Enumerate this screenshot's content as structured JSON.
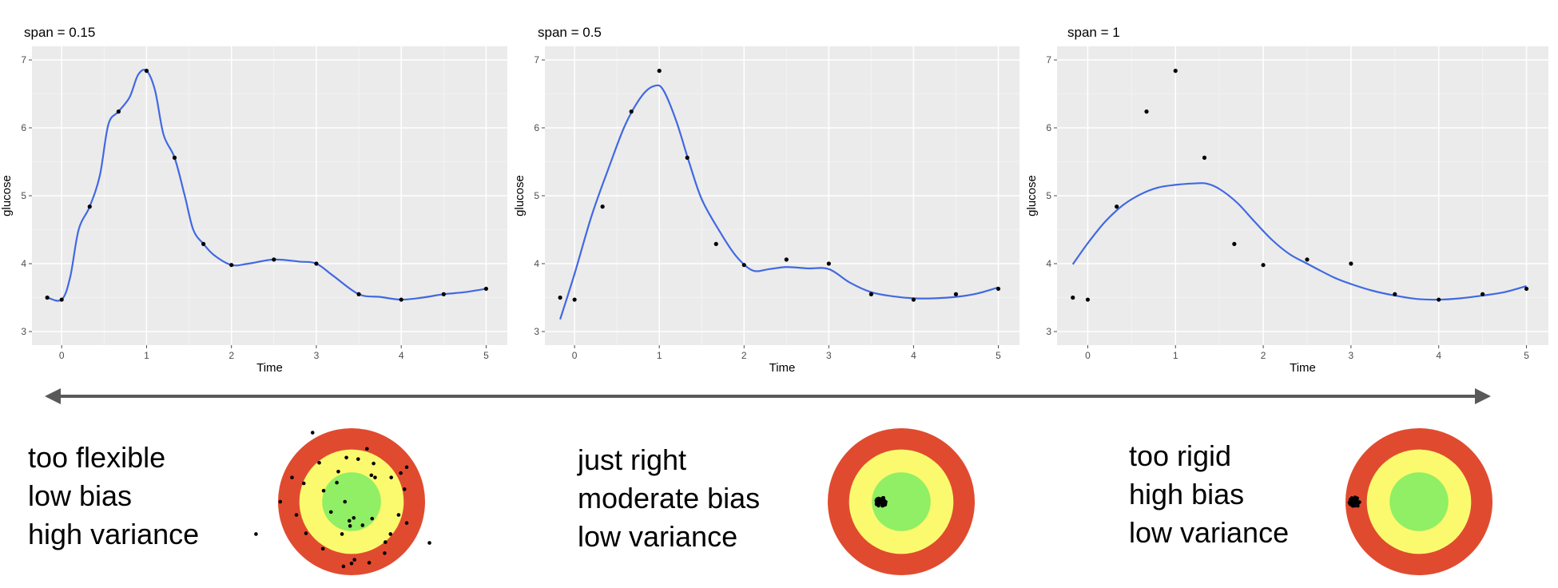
{
  "chart_data": [
    {
      "type": "scatter",
      "title": "span = 0.15",
      "xlabel": "Time",
      "ylabel": "glucose",
      "xlim": [
        -0.35,
        5.25
      ],
      "ylim": [
        2.8,
        7.2
      ],
      "x_ticks": [
        "0",
        "1",
        "2",
        "3",
        "4",
        "5"
      ],
      "y_ticks": [
        "3",
        "4",
        "5",
        "6",
        "7"
      ],
      "grid": true,
      "points": {
        "x": [
          -0.17,
          0,
          0.33,
          0.67,
          1,
          1.33,
          1.67,
          2,
          2.5,
          3,
          3.5,
          4,
          4.5,
          5
        ],
        "y": [
          3.5,
          3.47,
          4.84,
          6.24,
          6.84,
          5.56,
          4.29,
          3.98,
          4.06,
          4.0,
          3.55,
          3.47,
          3.55,
          3.63
        ]
      },
      "smooth": {
        "x": [
          -0.17,
          0,
          0.1,
          0.2,
          0.33,
          0.45,
          0.55,
          0.67,
          0.8,
          0.9,
          1,
          1.1,
          1.2,
          1.33,
          1.45,
          1.55,
          1.67,
          1.8,
          2,
          2.2,
          2.5,
          2.8,
          3,
          3.2,
          3.5,
          3.75,
          4,
          4.25,
          4.5,
          4.75,
          5
        ],
        "y": [
          3.5,
          3.47,
          3.8,
          4.5,
          4.84,
          5.3,
          6.05,
          6.24,
          6.45,
          6.78,
          6.84,
          6.55,
          5.9,
          5.56,
          5.0,
          4.5,
          4.29,
          4.12,
          3.98,
          4.0,
          4.06,
          4.03,
          4.0,
          3.82,
          3.55,
          3.51,
          3.47,
          3.5,
          3.55,
          3.58,
          3.63
        ]
      },
      "color": "#4169e1"
    },
    {
      "type": "scatter",
      "title": "span = 0.5",
      "xlabel": "Time",
      "ylabel": "glucose",
      "xlim": [
        -0.35,
        5.25
      ],
      "ylim": [
        2.8,
        7.2
      ],
      "x_ticks": [
        "0",
        "1",
        "2",
        "3",
        "4",
        "5"
      ],
      "y_ticks": [
        "3",
        "4",
        "5",
        "6",
        "7"
      ],
      "grid": true,
      "points": {
        "x": [
          -0.17,
          0,
          0.33,
          0.67,
          1,
          1.33,
          1.67,
          2,
          2.5,
          3,
          3.5,
          4,
          4.5,
          5
        ],
        "y": [
          3.5,
          3.47,
          4.84,
          6.24,
          6.84,
          5.56,
          4.29,
          3.98,
          4.06,
          4.0,
          3.55,
          3.47,
          3.55,
          3.63
        ]
      },
      "smooth": {
        "x": [
          -0.17,
          0,
          0.2,
          0.4,
          0.6,
          0.8,
          0.95,
          1.05,
          1.2,
          1.35,
          1.5,
          1.7,
          1.9,
          2.1,
          2.3,
          2.5,
          2.75,
          3,
          3.25,
          3.5,
          3.75,
          4,
          4.25,
          4.5,
          4.75,
          5
        ],
        "y": [
          3.18,
          3.85,
          4.7,
          5.4,
          6.05,
          6.48,
          6.62,
          6.55,
          6.1,
          5.5,
          4.95,
          4.5,
          4.12,
          3.9,
          3.92,
          3.95,
          3.93,
          3.92,
          3.72,
          3.58,
          3.52,
          3.49,
          3.49,
          3.51,
          3.56,
          3.65
        ]
      },
      "color": "#4169e1"
    },
    {
      "type": "scatter",
      "title": "span = 1",
      "xlabel": "Time",
      "ylabel": "glucose",
      "xlim": [
        -0.35,
        5.25
      ],
      "ylim": [
        2.8,
        7.2
      ],
      "x_ticks": [
        "0",
        "1",
        "2",
        "3",
        "4",
        "5"
      ],
      "y_ticks": [
        "3",
        "4",
        "5",
        "6",
        "7"
      ],
      "grid": true,
      "points": {
        "x": [
          -0.17,
          0,
          0.33,
          0.67,
          1,
          1.33,
          1.67,
          2,
          2.5,
          3,
          3.5,
          4,
          4.5,
          5
        ],
        "y": [
          3.5,
          3.47,
          4.84,
          6.24,
          6.84,
          5.56,
          4.29,
          3.98,
          4.06,
          4.0,
          3.55,
          3.47,
          3.55,
          3.63
        ]
      },
      "smooth": {
        "x": [
          -0.17,
          0,
          0.2,
          0.4,
          0.6,
          0.8,
          1,
          1.2,
          1.35,
          1.5,
          1.7,
          1.9,
          2.1,
          2.3,
          2.5,
          2.8,
          3,
          3.25,
          3.5,
          3.75,
          4,
          4.25,
          4.5,
          4.75,
          5
        ],
        "y": [
          3.99,
          4.3,
          4.62,
          4.86,
          5.02,
          5.12,
          5.16,
          5.18,
          5.18,
          5.1,
          4.9,
          4.62,
          4.35,
          4.14,
          4.0,
          3.8,
          3.7,
          3.6,
          3.53,
          3.48,
          3.47,
          3.49,
          3.53,
          3.58,
          3.67
        ]
      },
      "color": "#4169e1"
    }
  ],
  "arrow": {
    "color": "#595959"
  },
  "targets": {
    "ring_colors": {
      "outer": "#e04b2f",
      "middle": "#fbfa6e",
      "inner": "#90ef64"
    },
    "items": [
      {
        "lines": [
          "too flexible",
          "low bias",
          "high variance"
        ],
        "hits": [
          [
            -0.53,
            -0.94
          ],
          [
            0.21,
            -0.72
          ],
          [
            -0.44,
            -0.53
          ],
          [
            -0.65,
            -0.25
          ],
          [
            -0.81,
            -0.33
          ],
          [
            -0.97,
            0.0
          ],
          [
            -0.75,
            0.18
          ],
          [
            -0.62,
            0.43
          ],
          [
            -0.39,
            0.64
          ],
          [
            -0.11,
            0.88
          ],
          [
            0.0,
            0.84
          ],
          [
            0.24,
            0.83
          ],
          [
            0.46,
            0.55
          ],
          [
            0.53,
            0.44
          ],
          [
            0.64,
            0.18
          ],
          [
            0.72,
            -0.17
          ],
          [
            0.67,
            -0.39
          ],
          [
            0.75,
            0.29
          ],
          [
            0.3,
            -0.52
          ],
          [
            0.32,
            -0.33
          ],
          [
            0.09,
            -0.58
          ],
          [
            -0.18,
            -0.41
          ],
          [
            -0.13,
            0.44
          ],
          [
            -0.03,
            0.26
          ],
          [
            -0.38,
            -0.15
          ],
          [
            -0.28,
            0.14
          ],
          [
            -0.09,
            0.0
          ],
          [
            0.03,
            0.22
          ],
          [
            0.28,
            0.23
          ],
          [
            0.15,
            0.32
          ],
          [
            0.45,
            0.7
          ],
          [
            0.54,
            -0.33
          ],
          [
            0.75,
            -0.47
          ],
          [
            1.06,
            0.56
          ],
          [
            0.04,
            0.79
          ],
          [
            -0.07,
            -0.6
          ],
          [
            0.27,
            -0.36
          ],
          [
            -1.3,
            0.44
          ],
          [
            -0.02,
            0.33
          ],
          [
            -0.2,
            -0.26
          ]
        ],
        "hit_spread": 0
      },
      {
        "lines": [
          "just right",
          "moderate bias",
          "low variance"
        ],
        "hits_center": [
          -0.27,
          0.0
        ],
        "hit_spread": 0.08,
        "hit_count": 45
      },
      {
        "lines": [
          "too rigid",
          "high bias",
          "low variance"
        ],
        "hits_center": [
          -0.87,
          0.0
        ],
        "hit_spread": 0.08,
        "hit_count": 45
      }
    ]
  }
}
